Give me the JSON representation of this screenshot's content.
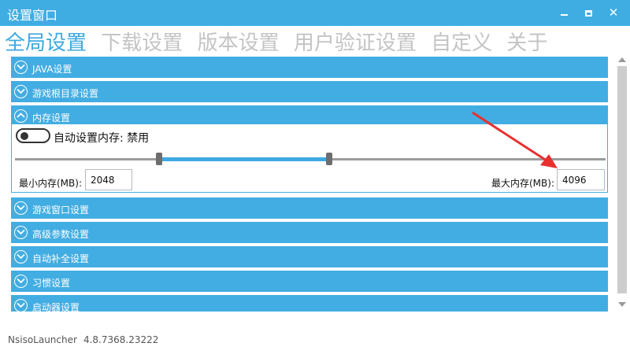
{
  "window": {
    "title": "设置窗口",
    "controls": {
      "minimize": "",
      "maximize": "",
      "close": "✕"
    }
  },
  "tabs": [
    {
      "label": "全局设置",
      "active": true
    },
    {
      "label": "下载设置",
      "active": false
    },
    {
      "label": "版本设置",
      "active": false
    },
    {
      "label": "用户验证设置",
      "active": false
    },
    {
      "label": "自定义",
      "active": false
    },
    {
      "label": "关于",
      "active": false
    }
  ],
  "sections": [
    {
      "label": "JAVA设置",
      "expanded": false
    },
    {
      "label": "游戏根目录设置",
      "expanded": false
    },
    {
      "label": "内存设置",
      "expanded": true
    },
    {
      "label": "游戏窗口设置",
      "expanded": false
    },
    {
      "label": "高级参数设置",
      "expanded": false
    },
    {
      "label": "自动补全设置",
      "expanded": false
    },
    {
      "label": "习惯设置",
      "expanded": false
    },
    {
      "label": "启动器设置",
      "expanded": false
    }
  ],
  "memory": {
    "auto_label": "自动设置内存: 禁用",
    "auto_enabled": false,
    "min_label": "最小内存(MB):",
    "min_value": "2048",
    "max_label": "最大内存(MB):",
    "max_value": "4096"
  },
  "footer": {
    "app_name": "NsisoLauncher",
    "version": "4.8.7368.23222"
  },
  "colors": {
    "accent": "#42ade2",
    "annotation_arrow": "#e8302f"
  }
}
